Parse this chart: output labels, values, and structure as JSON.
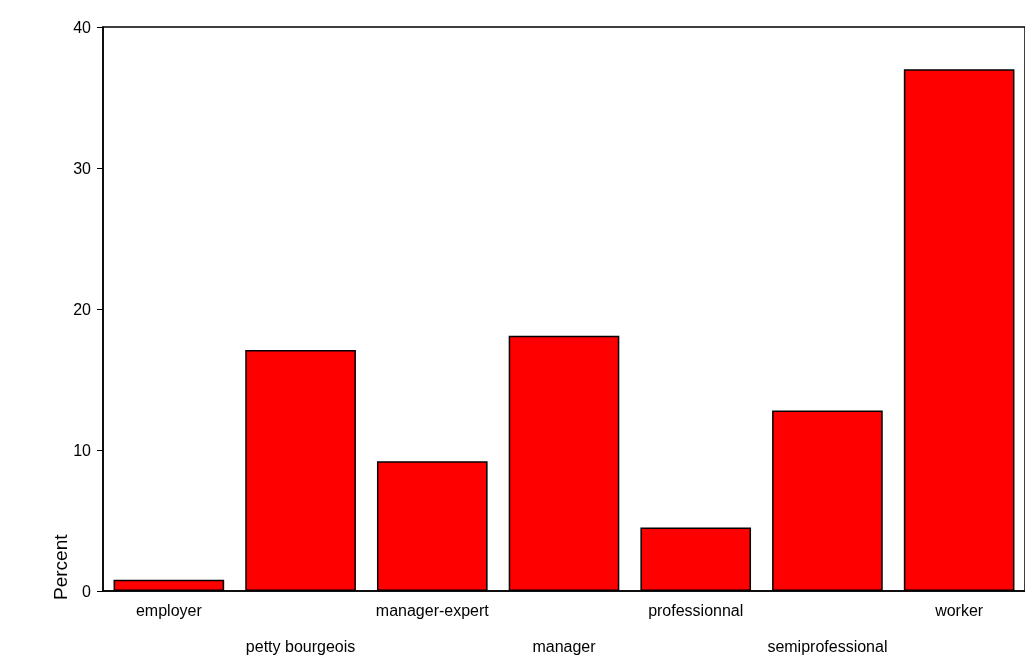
{
  "chart_data": {
    "type": "bar",
    "ylabel": "Percent",
    "categories": [
      "employer",
      "petty bourgeois",
      "manager-expert",
      "manager",
      "professionnal",
      "semiprofessional",
      "worker"
    ],
    "values": [
      0.8,
      17.1,
      9.2,
      18.1,
      4.5,
      12.8,
      37.0
    ],
    "color": "#fe0000",
    "ylim": [
      0,
      40
    ],
    "yticks": [
      0,
      10,
      20,
      30,
      40
    ],
    "grid": false
  }
}
